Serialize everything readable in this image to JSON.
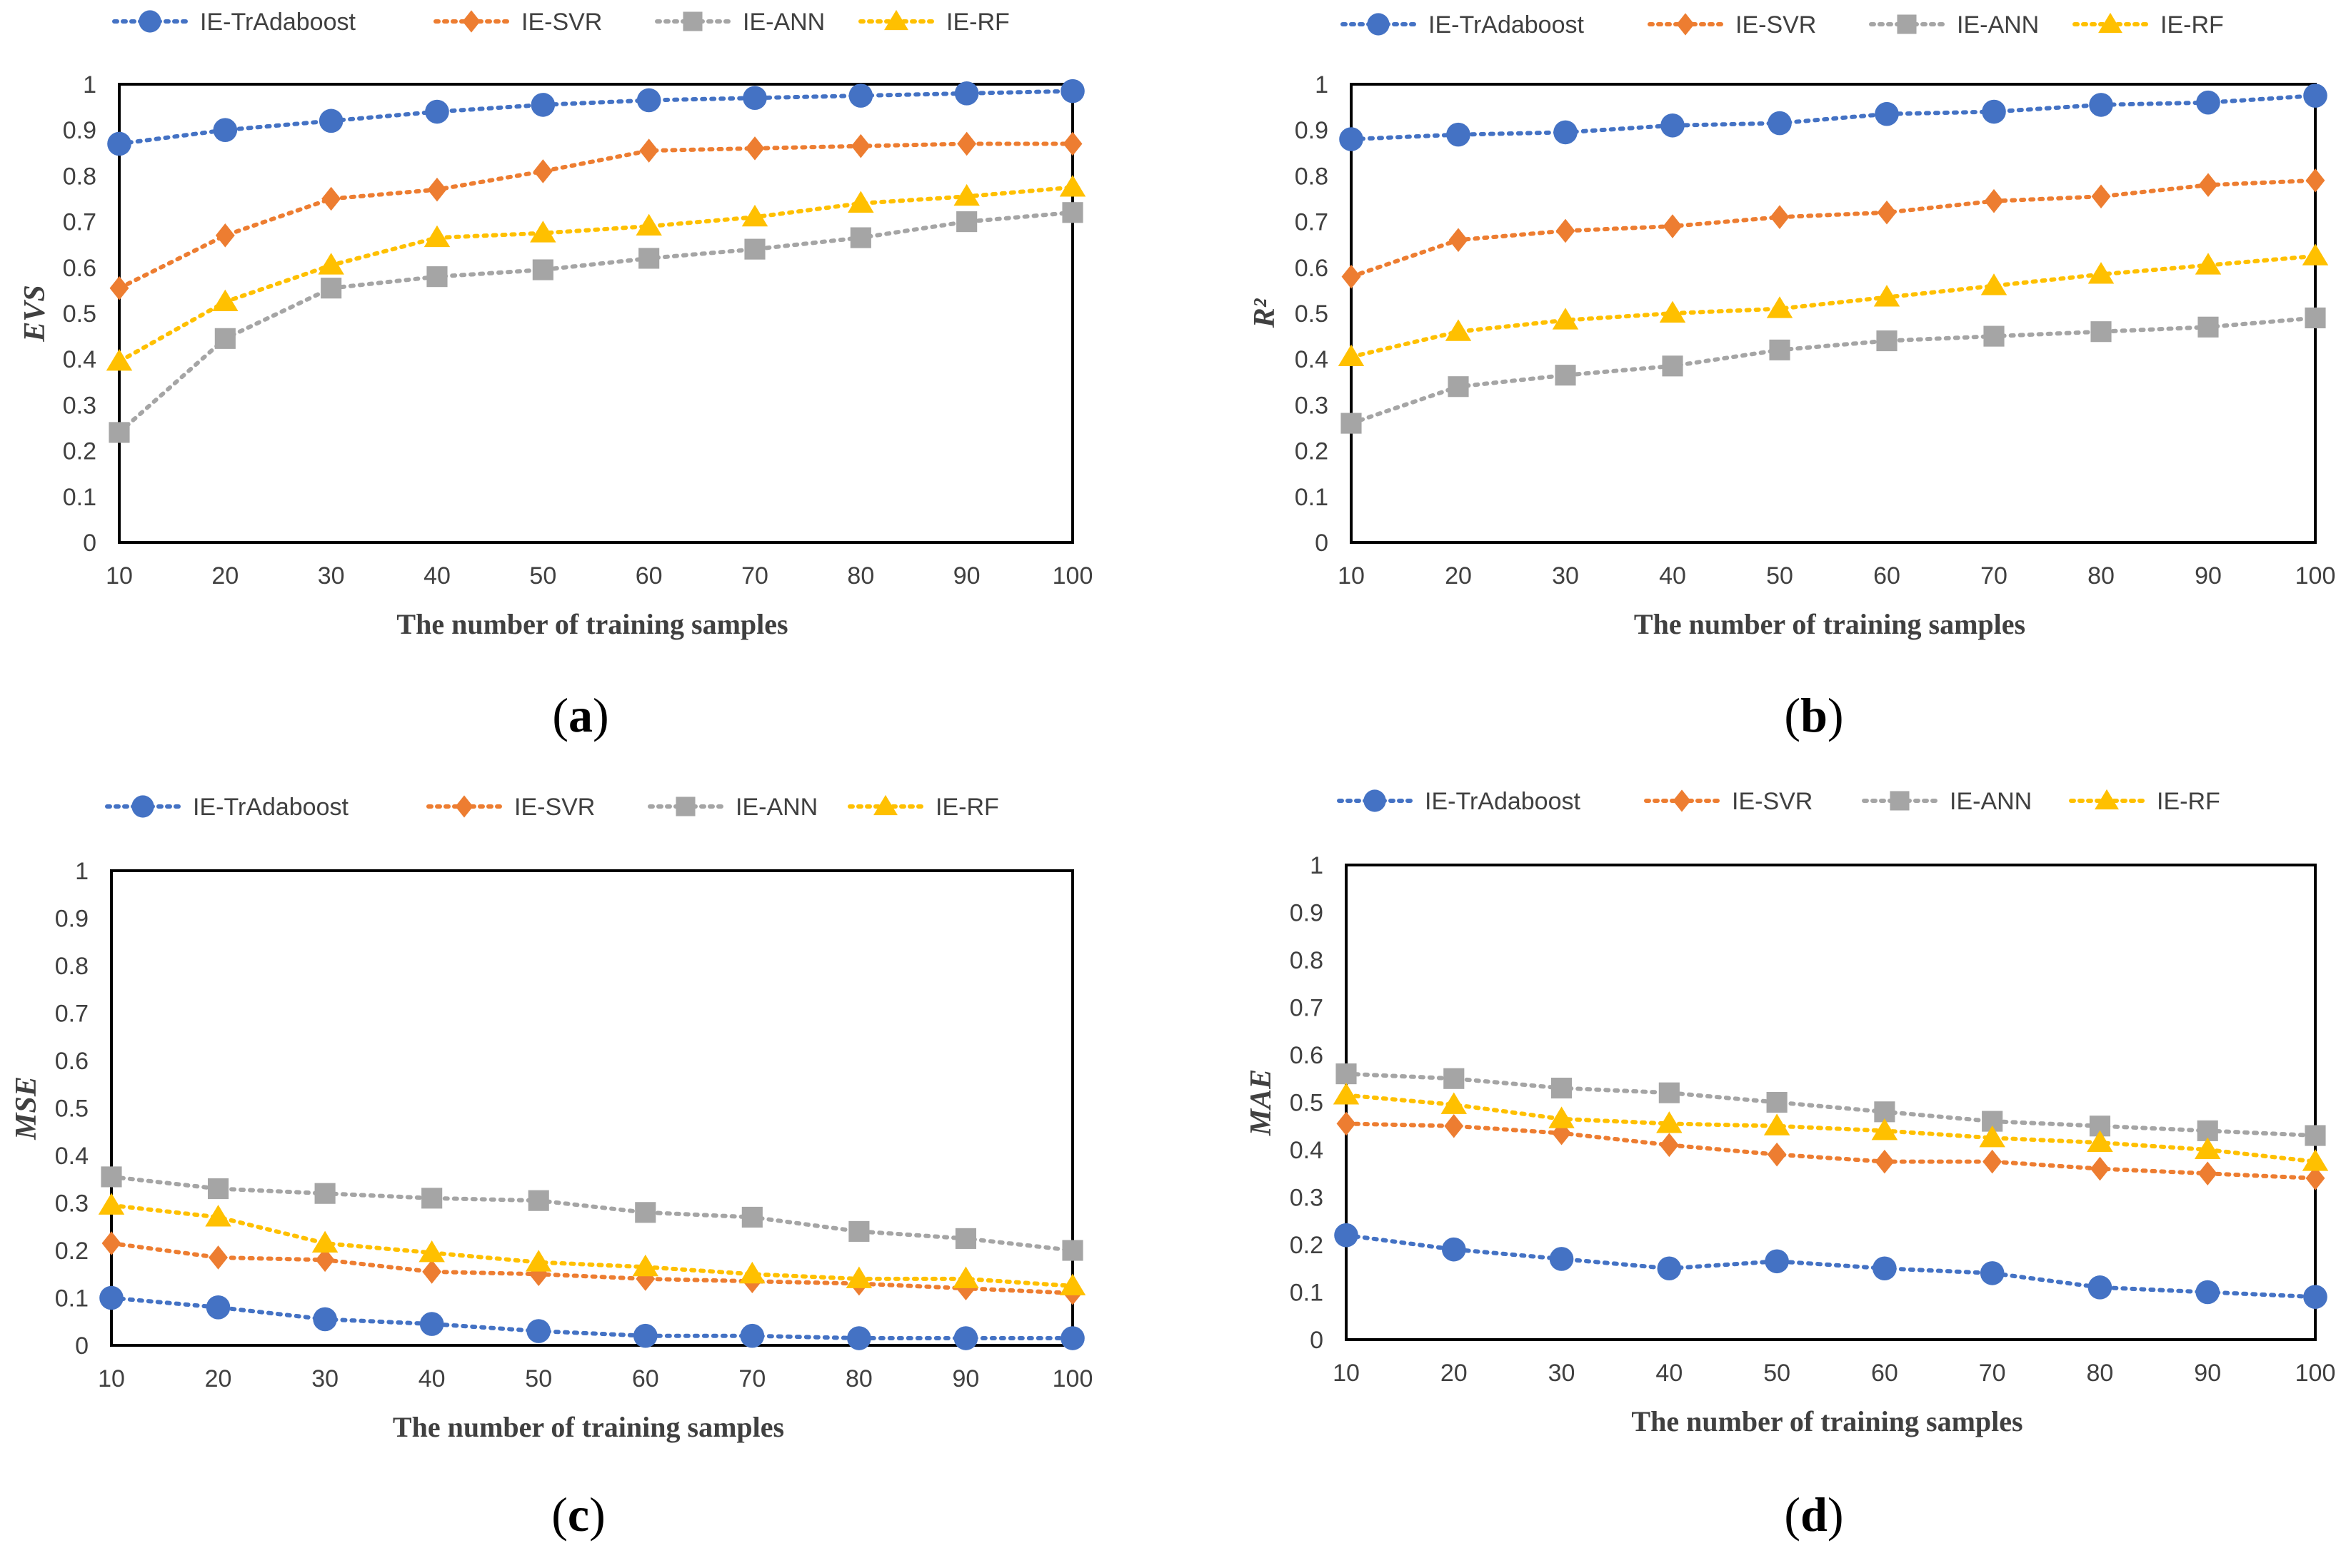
{
  "figure": {
    "legend": [
      {
        "name": "IE-TrAdaboost",
        "color": "#4472C4",
        "marker": "circle"
      },
      {
        "name": "IE-SVR",
        "color": "#ED7D31",
        "marker": "diamond"
      },
      {
        "name": "IE-ANN",
        "color": "#A5A5A5",
        "marker": "square"
      },
      {
        "name": "IE-RF",
        "color": "#FFC000",
        "marker": "triangle"
      }
    ]
  },
  "chart_data": [
    {
      "type": "line",
      "panel_label": "(a)",
      "xlabel": "The number of training samples",
      "ylabel": "EVS",
      "x": [
        10,
        20,
        30,
        40,
        50,
        60,
        70,
        80,
        90,
        100
      ],
      "ylim": [
        0,
        1
      ],
      "yticks": [
        "0",
        "0.1",
        "0.2",
        "0.3",
        "0.4",
        "0.5",
        "0.6",
        "0.7",
        "0.8",
        "0.9",
        "1"
      ],
      "xticks": [
        "10",
        "20",
        "30",
        "40",
        "50",
        "60",
        "70",
        "80",
        "90",
        "100"
      ],
      "legend_position": "top",
      "grid": false,
      "series": [
        {
          "name": "IE-TrAdaboost",
          "values": [
            0.87,
            0.9,
            0.92,
            0.94,
            0.955,
            0.965,
            0.97,
            0.975,
            0.98,
            0.985
          ]
        },
        {
          "name": "IE-SVR",
          "values": [
            0.555,
            0.67,
            0.75,
            0.77,
            0.81,
            0.855,
            0.86,
            0.865,
            0.87,
            0.87
          ]
        },
        {
          "name": "IE-ANN",
          "values": [
            0.24,
            0.445,
            0.555,
            0.58,
            0.595,
            0.62,
            0.64,
            0.665,
            0.7,
            0.72
          ]
        },
        {
          "name": "IE-RF",
          "values": [
            0.395,
            0.525,
            0.605,
            0.665,
            0.675,
            0.69,
            0.71,
            0.74,
            0.755,
            0.775
          ]
        }
      ]
    },
    {
      "type": "line",
      "panel_label": "(b)",
      "xlabel": "The number of training samples",
      "ylabel": "R²",
      "x": [
        10,
        20,
        30,
        40,
        50,
        60,
        70,
        80,
        90,
        100
      ],
      "ylim": [
        0,
        1
      ],
      "yticks": [
        "0",
        "0.1",
        "0.2",
        "0.3",
        "0.4",
        "0.5",
        "0.6",
        "0.7",
        "0.8",
        "0.9",
        "1"
      ],
      "xticks": [
        "10",
        "20",
        "30",
        "40",
        "50",
        "60",
        "70",
        "80",
        "90",
        "100"
      ],
      "legend_position": "top",
      "grid": false,
      "series": [
        {
          "name": "IE-TrAdaboost",
          "values": [
            0.88,
            0.89,
            0.895,
            0.91,
            0.915,
            0.935,
            0.94,
            0.955,
            0.96,
            0.975
          ]
        },
        {
          "name": "IE-SVR",
          "values": [
            0.58,
            0.66,
            0.68,
            0.69,
            0.71,
            0.72,
            0.745,
            0.755,
            0.78,
            0.79
          ]
        },
        {
          "name": "IE-ANN",
          "values": [
            0.26,
            0.34,
            0.365,
            0.385,
            0.42,
            0.44,
            0.45,
            0.46,
            0.47,
            0.49
          ]
        },
        {
          "name": "IE-RF",
          "values": [
            0.405,
            0.46,
            0.485,
            0.5,
            0.51,
            0.535,
            0.56,
            0.585,
            0.605,
            0.625
          ]
        }
      ]
    },
    {
      "type": "line",
      "panel_label": "(c)",
      "xlabel": "The number of training samples",
      "ylabel": "MSE",
      "x": [
        10,
        20,
        30,
        40,
        50,
        60,
        70,
        80,
        90,
        100
      ],
      "ylim": [
        0,
        1
      ],
      "yticks": [
        "0",
        "0.1",
        "0.2",
        "0.3",
        "0.4",
        "0.5",
        "0.6",
        "0.7",
        "0.8",
        "0.9",
        "1"
      ],
      "xticks": [
        "10",
        "20",
        "30",
        "40",
        "50",
        "60",
        "70",
        "80",
        "90",
        "100"
      ],
      "legend_position": "top",
      "grid": false,
      "series": [
        {
          "name": "IE-TrAdaboost",
          "values": [
            0.1,
            0.08,
            0.055,
            0.045,
            0.03,
            0.02,
            0.02,
            0.015,
            0.015,
            0.015
          ]
        },
        {
          "name": "IE-SVR",
          "values": [
            0.215,
            0.185,
            0.18,
            0.155,
            0.15,
            0.14,
            0.135,
            0.13,
            0.12,
            0.11
          ]
        },
        {
          "name": "IE-ANN",
          "values": [
            0.355,
            0.33,
            0.32,
            0.31,
            0.305,
            0.28,
            0.27,
            0.24,
            0.225,
            0.2
          ]
        },
        {
          "name": "IE-RF",
          "values": [
            0.295,
            0.27,
            0.215,
            0.195,
            0.175,
            0.165,
            0.15,
            0.14,
            0.14,
            0.125
          ]
        }
      ]
    },
    {
      "type": "line",
      "panel_label": "(d)",
      "xlabel": "The number of training samples",
      "ylabel": "MAE",
      "x": [
        10,
        20,
        30,
        40,
        50,
        60,
        70,
        80,
        90,
        100
      ],
      "ylim": [
        0,
        1
      ],
      "yticks": [
        "0",
        "0.1",
        "0.2",
        "0.3",
        "0.4",
        "0.5",
        "0.6",
        "0.7",
        "0.8",
        "0.9",
        "1"
      ],
      "xticks": [
        "10",
        "20",
        "30",
        "40",
        "50",
        "60",
        "70",
        "80",
        "90",
        "100"
      ],
      "legend_position": "top",
      "grid": false,
      "series": [
        {
          "name": "IE-TrAdaboost",
          "values": [
            0.22,
            0.19,
            0.17,
            0.15,
            0.165,
            0.15,
            0.14,
            0.11,
            0.1,
            0.09
          ]
        },
        {
          "name": "IE-SVR",
          "values": [
            0.455,
            0.45,
            0.435,
            0.41,
            0.39,
            0.375,
            0.375,
            0.36,
            0.35,
            0.34
          ]
        },
        {
          "name": "IE-ANN",
          "values": [
            0.56,
            0.55,
            0.53,
            0.52,
            0.5,
            0.48,
            0.46,
            0.45,
            0.44,
            0.43
          ]
        },
        {
          "name": "IE-RF",
          "values": [
            0.515,
            0.495,
            0.465,
            0.455,
            0.45,
            0.44,
            0.425,
            0.415,
            0.4,
            0.375
          ]
        }
      ]
    }
  ]
}
